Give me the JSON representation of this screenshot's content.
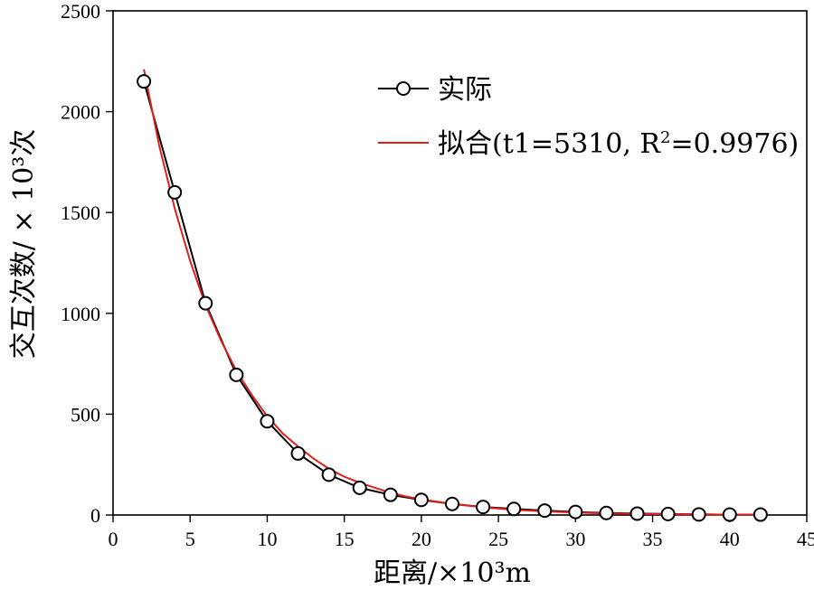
{
  "chart_data": {
    "type": "line",
    "xlabel": "距离/×10³m",
    "ylabel": "交互次数/ × 10³次",
    "xlim": [
      0,
      45
    ],
    "ylim": [
      0,
      2500
    ],
    "xticks": [
      0,
      5,
      10,
      15,
      20,
      25,
      30,
      35,
      40,
      45
    ],
    "yticks": [
      0,
      500,
      1000,
      1500,
      2000,
      2500
    ],
    "grid": false,
    "legend_position": "top-right",
    "colors": {
      "actual": "#000000",
      "fit": "#e0201b"
    },
    "series": [
      {
        "name": "实际",
        "marker": "circle",
        "x": [
          2,
          4,
          6,
          8,
          10,
          12,
          14,
          16,
          18,
          20,
          22,
          24,
          26,
          28,
          30,
          32,
          34,
          36,
          38,
          40,
          42
        ],
        "y": [
          2150,
          1600,
          1050,
          695,
          465,
          305,
          200,
          135,
          100,
          75,
          55,
          40,
          30,
          22,
          15,
          10,
          7,
          5,
          3,
          2,
          2
        ]
      },
      {
        "name": "拟合(t1=5310, R²=0.9976)",
        "label_main": "拟合(t1=5310, R",
        "label_sup": "2",
        "label_tail": "=0.9976)",
        "x": [
          2,
          3,
          4,
          5,
          6,
          7,
          8,
          9,
          10,
          11,
          12,
          13,
          14,
          15,
          16,
          17,
          18,
          19,
          20,
          22,
          24,
          26,
          28,
          30,
          32,
          34,
          36,
          38,
          40,
          42
        ],
        "y": [
          2210,
          1830,
          1520,
          1260,
          1040,
          865,
          715,
          595,
          490,
          405,
          340,
          280,
          230,
          190,
          160,
          135,
          110,
          92,
          78,
          55,
          38,
          26,
          18,
          12,
          8,
          6,
          4,
          3,
          2,
          1
        ]
      }
    ]
  }
}
